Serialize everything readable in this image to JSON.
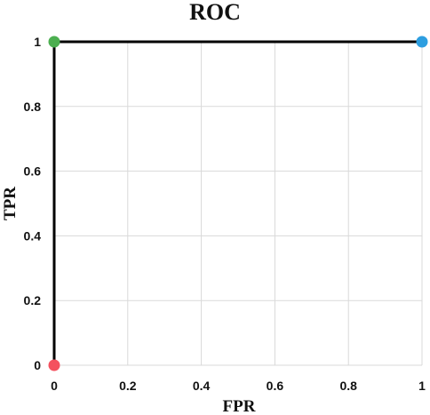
{
  "chart_data": {
    "type": "line",
    "title": "ROC",
    "xlabel": "FPR",
    "ylabel": "TPR",
    "xlim": [
      0,
      1
    ],
    "ylim": [
      0,
      1
    ],
    "x_ticks": [
      "0",
      "0.2",
      "0.4",
      "0.6",
      "0.8",
      "1"
    ],
    "y_ticks": [
      "0",
      "0.2",
      "0.4",
      "0.6",
      "0.8",
      "1"
    ],
    "x_tick_values": [
      0,
      0.2,
      0.4,
      0.6,
      0.8,
      1
    ],
    "y_tick_values": [
      0,
      0.2,
      0.4,
      0.6,
      0.8,
      1
    ],
    "grid": true,
    "series": [
      {
        "x": [
          0,
          0,
          1
        ],
        "y": [
          0,
          1,
          1
        ],
        "color": "#000000"
      }
    ],
    "points": [
      {
        "x": 0,
        "y": 0,
        "color": "#f4515f"
      },
      {
        "x": 0,
        "y": 1,
        "color": "#4caf50"
      },
      {
        "x": 1,
        "y": 1,
        "color": "#2d9ee0"
      }
    ]
  }
}
